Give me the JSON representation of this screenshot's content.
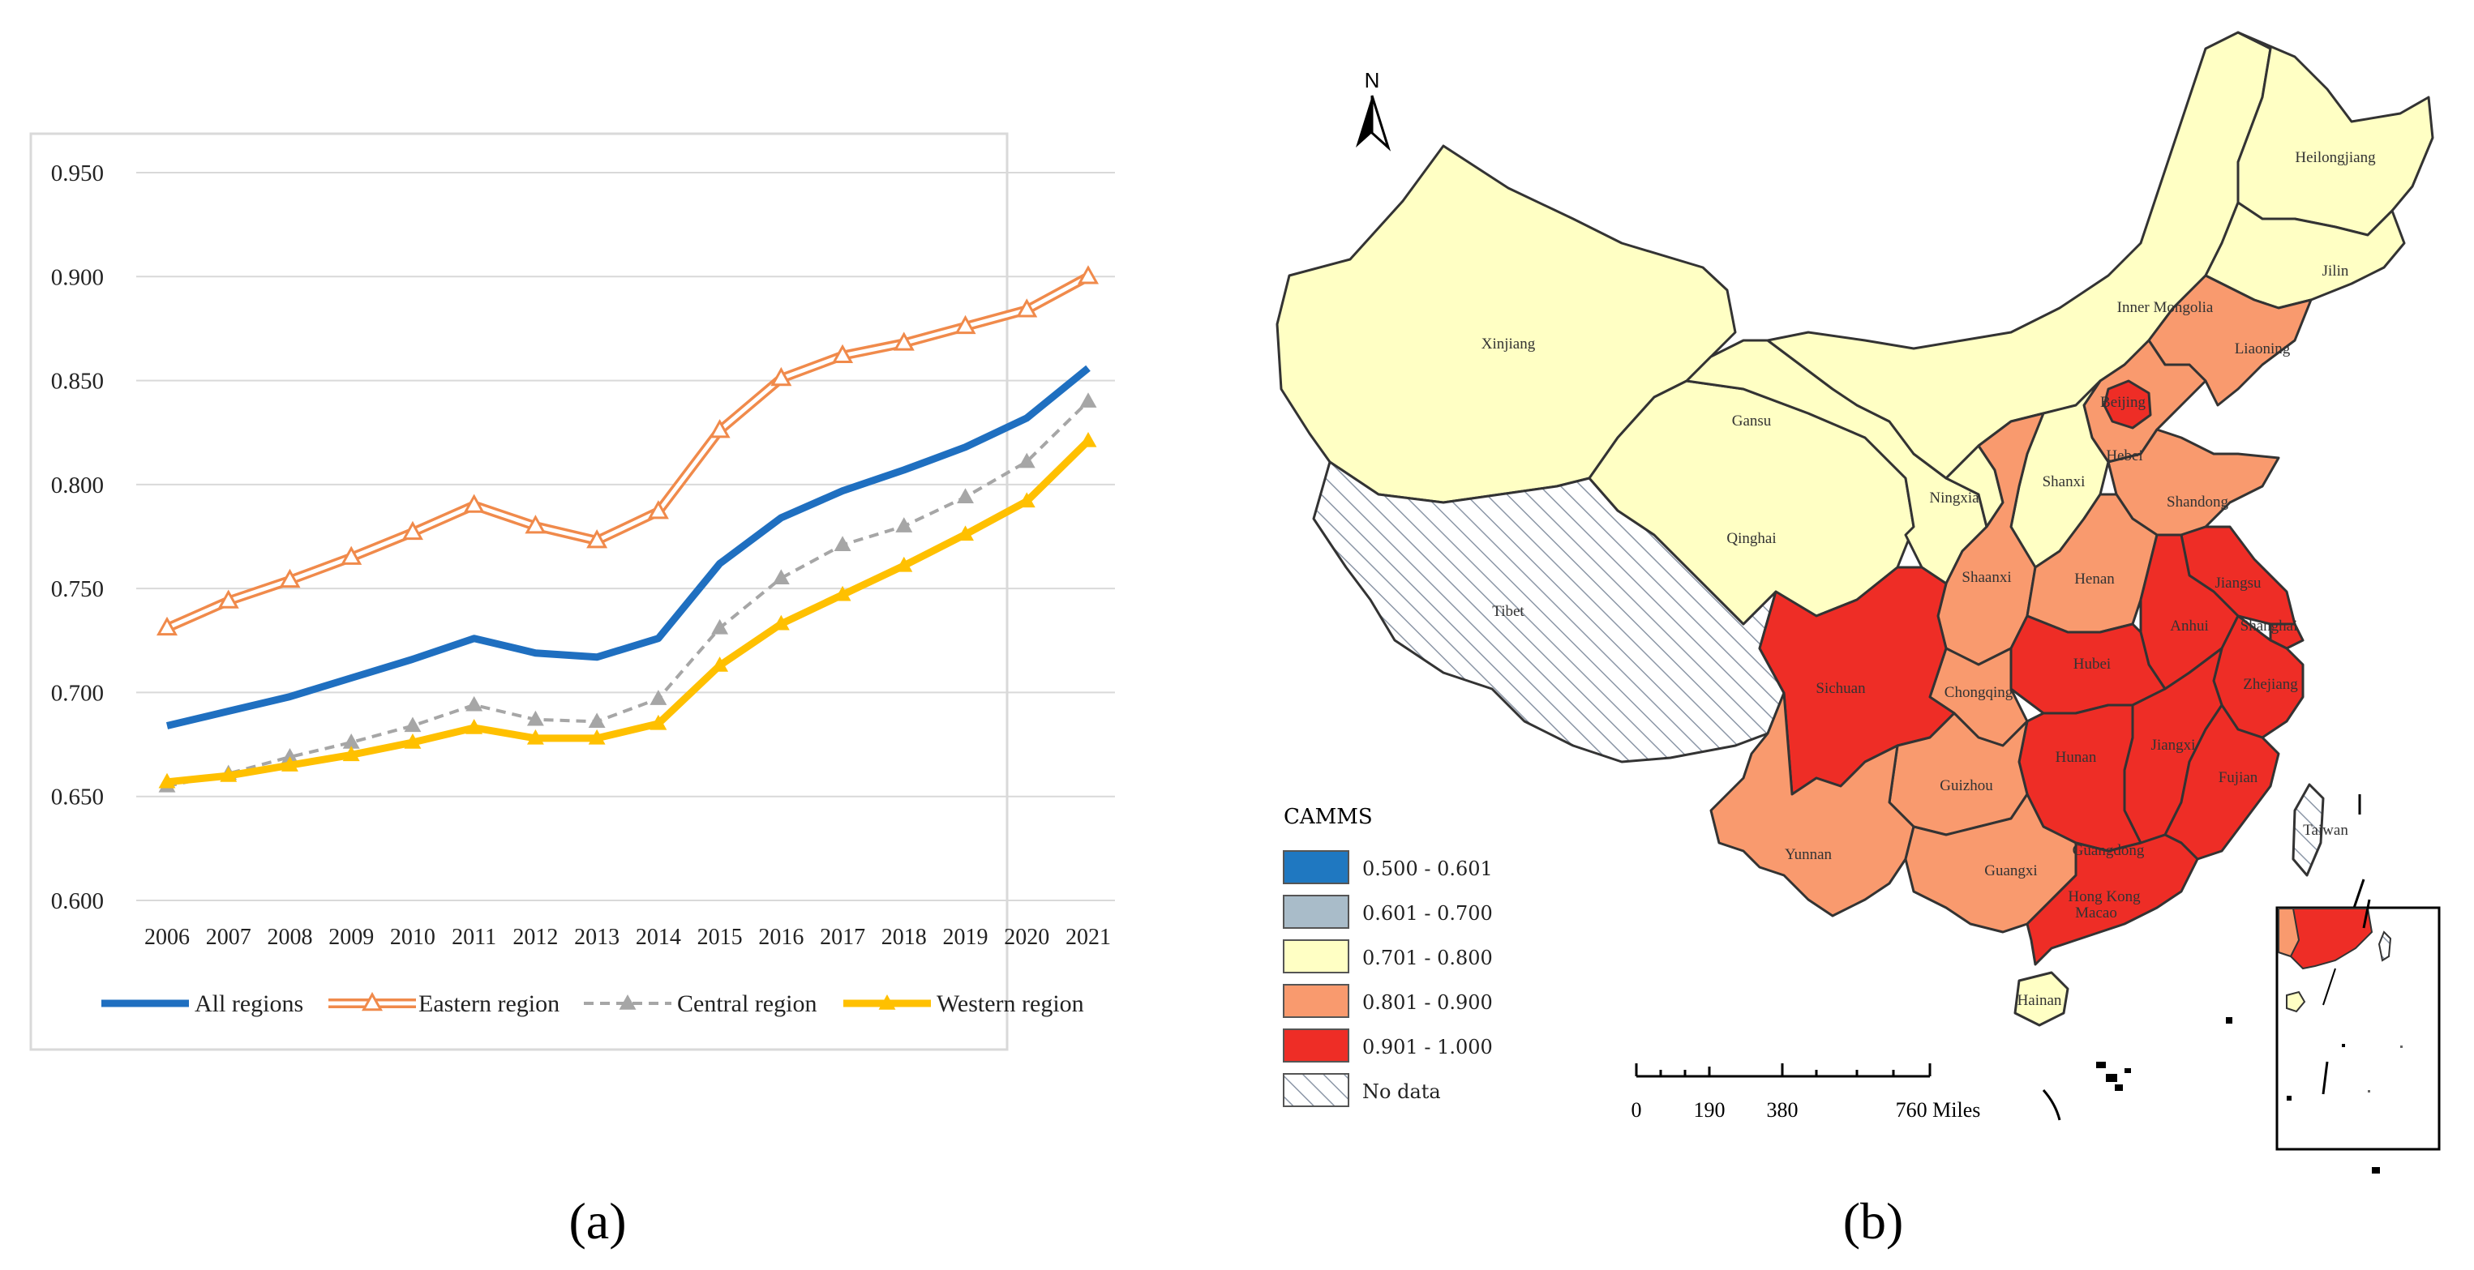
{
  "panels": {
    "a": {
      "caption": "(a)"
    },
    "b": {
      "caption": "(b)"
    }
  },
  "chart_data": {
    "type": "line",
    "title": "",
    "xlabel": "",
    "ylabel": "",
    "categories": [
      "2006",
      "2007",
      "2008",
      "2009",
      "2010",
      "2011",
      "2012",
      "2013",
      "2014",
      "2015",
      "2016",
      "2017",
      "2018",
      "2019",
      "2020",
      "2021"
    ],
    "ylim": [
      0.6,
      0.95
    ],
    "yticks": [
      "0.600",
      "0.650",
      "0.700",
      "0.750",
      "0.800",
      "0.850",
      "0.900",
      "0.950"
    ],
    "grid": true,
    "legend_position": "bottom",
    "series": [
      {
        "name": "All regions",
        "color": "#1f6fc0",
        "style": "solid-thick",
        "marker": "none",
        "values": [
          0.684,
          0.691,
          0.698,
          0.707,
          0.716,
          0.726,
          0.719,
          0.717,
          0.726,
          0.762,
          0.784,
          0.797,
          0.807,
          0.818,
          0.832,
          0.856
        ]
      },
      {
        "name": "Eastern region",
        "color": "#f08a4b",
        "style": "double",
        "marker": "triangle-open",
        "values": [
          0.731,
          0.744,
          0.754,
          0.765,
          0.777,
          0.79,
          0.78,
          0.773,
          0.787,
          0.826,
          0.851,
          0.862,
          0.868,
          0.876,
          0.884,
          0.9
        ]
      },
      {
        "name": "Central region",
        "color": "#a6a6a6",
        "style": "dashed",
        "marker": "triangle",
        "values": [
          0.655,
          0.661,
          0.669,
          0.676,
          0.684,
          0.694,
          0.687,
          0.686,
          0.697,
          0.731,
          0.755,
          0.771,
          0.78,
          0.794,
          0.811,
          0.84
        ]
      },
      {
        "name": "Western region",
        "color": "#ffc000",
        "style": "solid-thick",
        "marker": "triangle",
        "values": [
          0.657,
          0.66,
          0.665,
          0.67,
          0.676,
          0.683,
          0.678,
          0.678,
          0.685,
          0.713,
          0.733,
          0.747,
          0.761,
          0.776,
          0.792,
          0.821
        ]
      }
    ]
  },
  "map": {
    "north_label": "N",
    "legend_title": "CAMMS",
    "legend": [
      {
        "label": "0.500 - 0.601",
        "color": "#1f78c1"
      },
      {
        "label": "0.601 - 0.700",
        "color": "#a9bcc9"
      },
      {
        "label": "0.701 - 0.800",
        "color": "#ffffc4"
      },
      {
        "label": "0.801 - 0.900",
        "color": "#f99a6e"
      },
      {
        "label": "0.901 - 1.000",
        "color": "#ee2d26"
      },
      {
        "label": "No data",
        "color": "hatch"
      }
    ],
    "scale_labels": [
      "0",
      "190",
      "380",
      "760 Miles"
    ],
    "colors": {
      "hatch_line": "#8b96a6",
      "border": "#333333",
      "inset_frame": "#000000"
    },
    "regions": [
      {
        "label": "Heilongjiang"
      },
      {
        "label": "Jilin"
      },
      {
        "label": "Liaoning"
      },
      {
        "label": "Inner Mongolia"
      },
      {
        "label": "Xinjiang"
      },
      {
        "label": "Gansu"
      },
      {
        "label": "Qinghai"
      },
      {
        "label": "Ningxia"
      },
      {
        "label": "Shanxi"
      },
      {
        "label": "Beijing"
      },
      {
        "label": "Hebei"
      },
      {
        "label": "Shandong"
      },
      {
        "label": "Tibet"
      },
      {
        "label": "Shaanxi"
      },
      {
        "label": "Henan"
      },
      {
        "label": "Jiangsu"
      },
      {
        "label": "Anhui"
      },
      {
        "label": "Shanghai"
      },
      {
        "label": "Sichuan"
      },
      {
        "label": "Chongqing"
      },
      {
        "label": "Hubei"
      },
      {
        "label": "Zhejiang"
      },
      {
        "label": "Hunan"
      },
      {
        "label": "Jiangxi"
      },
      {
        "label": "Guizhou"
      },
      {
        "label": "Fujian"
      },
      {
        "label": "Taiwan"
      },
      {
        "label": "Yunnan"
      },
      {
        "label": "Guangxi"
      },
      {
        "label": "Guangdong"
      },
      {
        "label": "Hong Kong"
      },
      {
        "label": "Macao"
      },
      {
        "label": "Hainan"
      }
    ]
  }
}
